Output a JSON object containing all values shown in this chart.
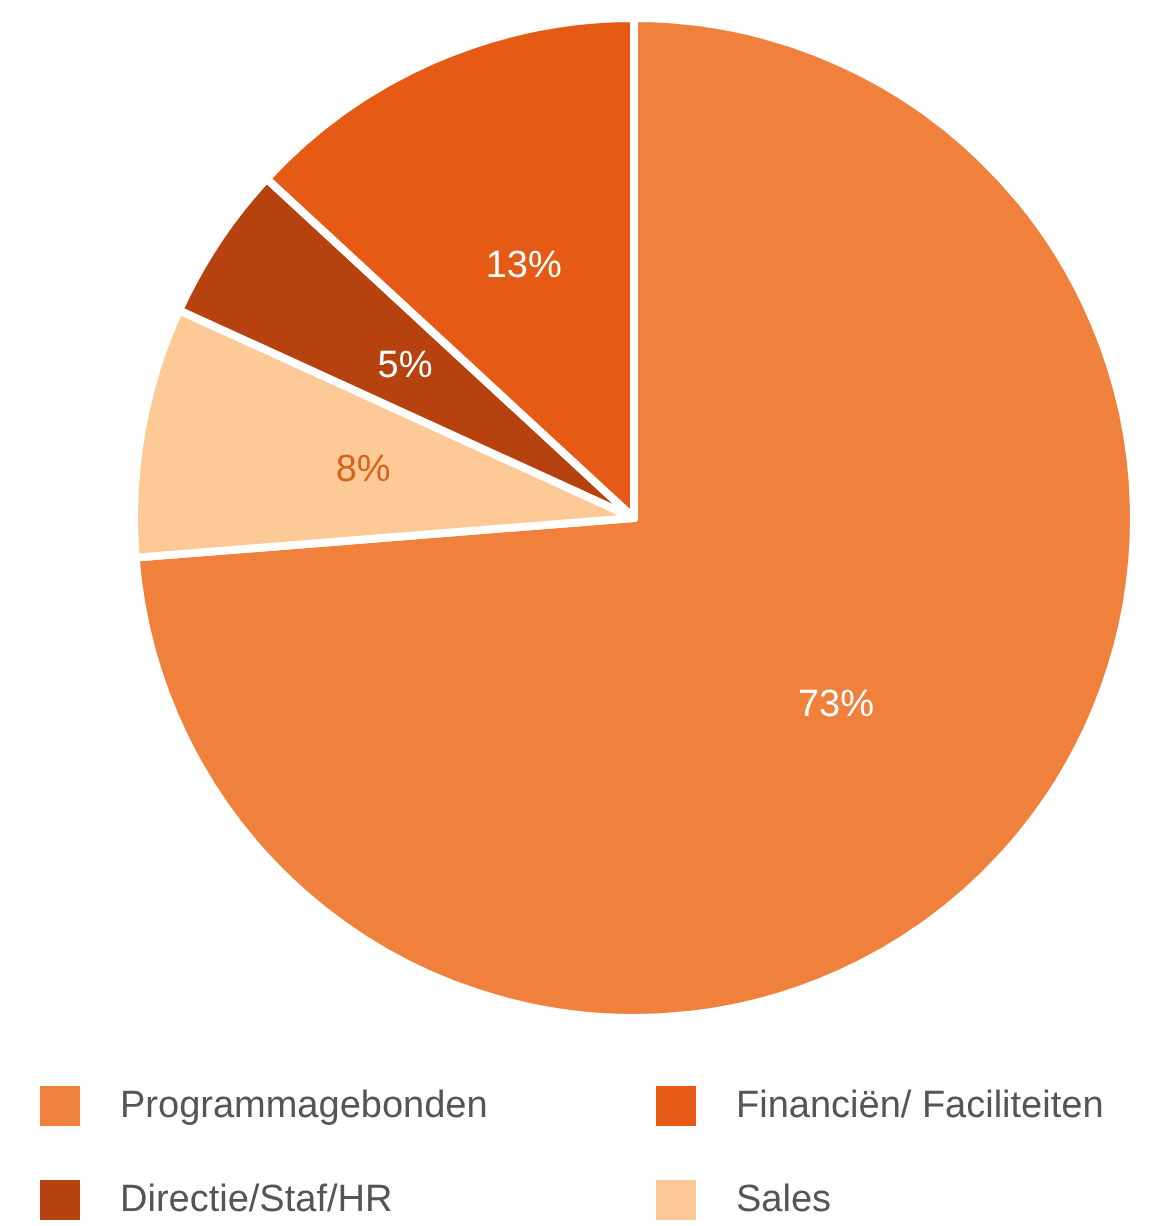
{
  "chart_data": {
    "type": "pie",
    "categories": [
      "Programmagebonden",
      "Sales",
      "Directie/Staf/HR",
      "Financiën/ Faciliteiten"
    ],
    "values": [
      73,
      8,
      5,
      13
    ],
    "colors": [
      "#f0813c",
      "#fdc996",
      "#b5420f",
      "#e55a14"
    ],
    "value_labels": [
      "73%",
      "8%",
      "5%",
      "13%"
    ],
    "legend": "bottom"
  }
}
